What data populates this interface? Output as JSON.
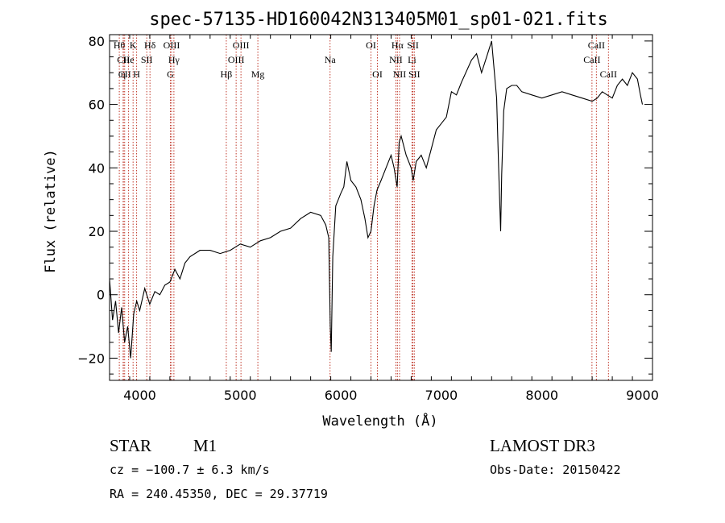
{
  "chart_data": {
    "type": "line",
    "title": "spec-57135-HD160042N313405M01_sp01-021.fits",
    "xlabel": "Wavelength (Å)",
    "ylabel": "Flux (relative)",
    "xlim": [
      3700,
      9100
    ],
    "ylim": [
      -27,
      82
    ],
    "xticks": [
      4000,
      5000,
      6000,
      7000,
      8000,
      9000
    ],
    "yticks": [
      -20,
      0,
      20,
      40,
      60,
      80
    ],
    "xtick_labels": [
      "4000",
      "5000",
      "6000",
      "7000",
      "8000",
      "9000"
    ],
    "ytick_labels": [
      "−20",
      "0",
      "20",
      "40",
      "60",
      "80"
    ],
    "grid": false,
    "series": [
      {
        "name": "flux",
        "x": [
          3700,
          3730,
          3760,
          3790,
          3820,
          3850,
          3880,
          3910,
          3940,
          3970,
          4000,
          4050,
          4100,
          4150,
          4200,
          4250,
          4300,
          4350,
          4400,
          4450,
          4500,
          4600,
          4700,
          4800,
          4900,
          5000,
          5100,
          5200,
          5300,
          5400,
          5500,
          5600,
          5700,
          5800,
          5850,
          5880,
          5895,
          5905,
          5920,
          5950,
          6000,
          6030,
          6060,
          6100,
          6150,
          6200,
          6240,
          6270,
          6300,
          6330,
          6360,
          6400,
          6450,
          6500,
          6530,
          6560,
          6580,
          6600,
          6650,
          6700,
          6720,
          6750,
          6800,
          6850,
          6900,
          6950,
          7000,
          7050,
          7100,
          7150,
          7200,
          7300,
          7350,
          7400,
          7450,
          7500,
          7550,
          7570,
          7590,
          7600,
          7620,
          7650,
          7700,
          7750,
          7800,
          7900,
          8000,
          8100,
          8200,
          8300,
          8400,
          8500,
          8550,
          8600,
          8650,
          8700,
          8750,
          8800,
          8850,
          8900,
          8950,
          8980,
          9000
        ],
        "values": [
          5,
          -8,
          -2,
          -12,
          -4,
          -15,
          -10,
          -20,
          -6,
          -2,
          -5,
          2,
          -3,
          1,
          0,
          3,
          4,
          8,
          5,
          10,
          12,
          14,
          14,
          13,
          14,
          16,
          15,
          17,
          18,
          20,
          21,
          24,
          26,
          25,
          22,
          18,
          -10,
          -18,
          12,
          28,
          32,
          34,
          42,
          36,
          34,
          30,
          24,
          18,
          20,
          28,
          33,
          36,
          40,
          44,
          40,
          34,
          48,
          50,
          44,
          40,
          36,
          42,
          44,
          40,
          46,
          52,
          54,
          56,
          64,
          63,
          67,
          74,
          76,
          70,
          75,
          80,
          62,
          40,
          20,
          38,
          58,
          65,
          66,
          66,
          64,
          63,
          62,
          63,
          64,
          63,
          62,
          61,
          62,
          64,
          63,
          62,
          66,
          68,
          66,
          70,
          68,
          63,
          60
        ]
      }
    ],
    "line_markers": [
      {
        "label": "Hθ",
        "x": 3797,
        "row": 1
      },
      {
        "label": "CII",
        "x": 3838,
        "row": 2
      },
      {
        "label": "CII",
        "x": 3850,
        "row": 3
      },
      {
        "label": "He",
        "x": 3889,
        "row": 2
      },
      {
        "label": "η",
        "x": 3835,
        "row": 3
      },
      {
        "label": "K",
        "x": 3934,
        "row": 1
      },
      {
        "label": "H",
        "x": 3969,
        "row": 3
      },
      {
        "label": "SII",
        "x": 4070,
        "row": 2
      },
      {
        "label": "Hδ",
        "x": 4102,
        "row": 1
      },
      {
        "label": "OIII",
        "x": 4317,
        "row": 1
      },
      {
        "label": "Hγ",
        "x": 4340,
        "row": 2
      },
      {
        "label": "G",
        "x": 4305,
        "row": 3
      },
      {
        "label": "Hβ",
        "x": 4861,
        "row": 3
      },
      {
        "label": "OIII",
        "x": 4959,
        "row": 2
      },
      {
        "label": "OIII",
        "x": 5007,
        "row": 1
      },
      {
        "label": "Mg",
        "x": 5175,
        "row": 3
      },
      {
        "label": "Na",
        "x": 5893,
        "row": 2
      },
      {
        "label": "OI",
        "x": 6300,
        "row": 1
      },
      {
        "label": "OI",
        "x": 6364,
        "row": 3
      },
      {
        "label": "Hα",
        "x": 6563,
        "row": 1
      },
      {
        "label": "NII",
        "x": 6548,
        "row": 2
      },
      {
        "label": "NII",
        "x": 6584,
        "row": 3
      },
      {
        "label": "Li",
        "x": 6708,
        "row": 2
      },
      {
        "label": "SII",
        "x": 6717,
        "row": 1
      },
      {
        "label": "SII",
        "x": 6731,
        "row": 3
      },
      {
        "label": "CaII",
        "x": 8542,
        "row": 1
      },
      {
        "label": "CaII",
        "x": 8498,
        "row": 2
      },
      {
        "label": "CaII",
        "x": 8662,
        "row": 3
      }
    ]
  },
  "info": {
    "object_class": "STAR",
    "subclass": "M1",
    "survey": "LAMOST DR3",
    "cz": "cz = −100.7 ± 6.3 km/s",
    "obs_date": "Obs-Date: 20150422",
    "coords": "RA = 240.45350, DEC =  29.37719"
  }
}
